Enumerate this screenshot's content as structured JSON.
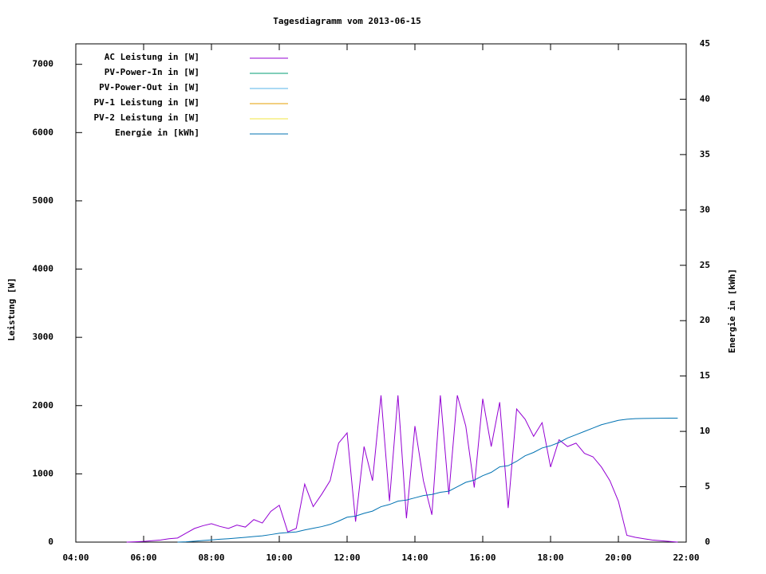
{
  "chart_data": {
    "type": "line",
    "title": "Tagesdiagramm vom 2013-06-15",
    "ylabel": "Leistung [W]",
    "y2label": "Energie in [kWh]",
    "legend": "top-left",
    "grid": false,
    "x": [
      5.5,
      5.75,
      6,
      6.25,
      6.5,
      6.75,
      7,
      7.25,
      7.5,
      7.75,
      8,
      8.25,
      8.5,
      8.75,
      9,
      9.25,
      9.5,
      9.75,
      10,
      10.25,
      10.5,
      10.75,
      11,
      11.25,
      11.5,
      11.75,
      12,
      12.25,
      12.5,
      12.75,
      13,
      13.25,
      13.5,
      13.75,
      14,
      14.25,
      14.5,
      14.75,
      15,
      15.25,
      15.5,
      15.75,
      16,
      16.25,
      16.5,
      16.75,
      17,
      17.25,
      17.5,
      17.75,
      18,
      18.25,
      18.5,
      18.75,
      19,
      19.25,
      19.5,
      19.75,
      20,
      20.25,
      20.5,
      20.75,
      21,
      21.25,
      21.5,
      21.75
    ],
    "xlim": [
      4,
      22
    ],
    "xticks": [
      {
        "value": 4,
        "label": "04:00"
      },
      {
        "value": 6,
        "label": "06:00"
      },
      {
        "value": 8,
        "label": "08:00"
      },
      {
        "value": 10,
        "label": "10:00"
      },
      {
        "value": 12,
        "label": "12:00"
      },
      {
        "value": 14,
        "label": "14:00"
      },
      {
        "value": 16,
        "label": "16:00"
      },
      {
        "value": 18,
        "label": "18:00"
      },
      {
        "value": 20,
        "label": "20:00"
      },
      {
        "value": 22,
        "label": "22:00"
      }
    ],
    "ylim": [
      0,
      7300
    ],
    "yticks": [
      0,
      1000,
      2000,
      3000,
      4000,
      5000,
      6000,
      7000
    ],
    "y2lim": [
      0,
      45
    ],
    "y2ticks": [
      0,
      5,
      10,
      15,
      20,
      25,
      30,
      35,
      40,
      45
    ],
    "series": [
      {
        "name": "AC Leistung in [W]",
        "color": "#9400d3",
        "values": [
          0,
          5,
          10,
          20,
          30,
          50,
          60,
          130,
          200,
          240,
          270,
          230,
          200,
          250,
          220,
          330,
          280,
          450,
          540,
          150,
          200,
          850,
          520,
          700,
          900,
          1450,
          1600,
          300,
          1400,
          900,
          2150,
          600,
          2150,
          350,
          1700,
          900,
          400,
          2150,
          700,
          2150,
          1700,
          800,
          2100,
          1400,
          2050,
          500,
          1950,
          1800,
          1550,
          1750,
          1100,
          1500,
          1400,
          1450,
          1300,
          1250,
          1100,
          900,
          600,
          100,
          70,
          50,
          30,
          20,
          10,
          0
        ]
      },
      {
        "name": "PV-Power-In in [W]",
        "color": "#009e73"
      },
      {
        "name": "PV-Power-Out in [W]",
        "color": "#56b4e9"
      },
      {
        "name": "PV-1 Leistung in [W]",
        "color": "#e69f00"
      },
      {
        "name": "PV-2 Leistung in [W]",
        "color": "#f0e442"
      },
      {
        "name": "Energie in [kWh]",
        "color": "#0072b2",
        "axis": "y2",
        "values": [
          null,
          null,
          null,
          null,
          null,
          null,
          0,
          0.03,
          0.08,
          0.14,
          0.2,
          0.26,
          0.31,
          0.37,
          0.43,
          0.5,
          0.57,
          0.68,
          0.8,
          0.86,
          0.92,
          1.1,
          1.25,
          1.4,
          1.6,
          1.9,
          2.25,
          2.35,
          2.6,
          2.8,
          3.2,
          3.4,
          3.7,
          3.8,
          4.0,
          4.2,
          4.3,
          4.5,
          4.6,
          5.0,
          5.4,
          5.6,
          6.0,
          6.3,
          6.8,
          6.9,
          7.3,
          7.8,
          8.1,
          8.5,
          8.7,
          9.0,
          9.4,
          9.7,
          10.0,
          10.3,
          10.6,
          10.8,
          11.0,
          11.1,
          11.15,
          11.17,
          11.18,
          11.19,
          11.2,
          11.2
        ]
      }
    ]
  }
}
